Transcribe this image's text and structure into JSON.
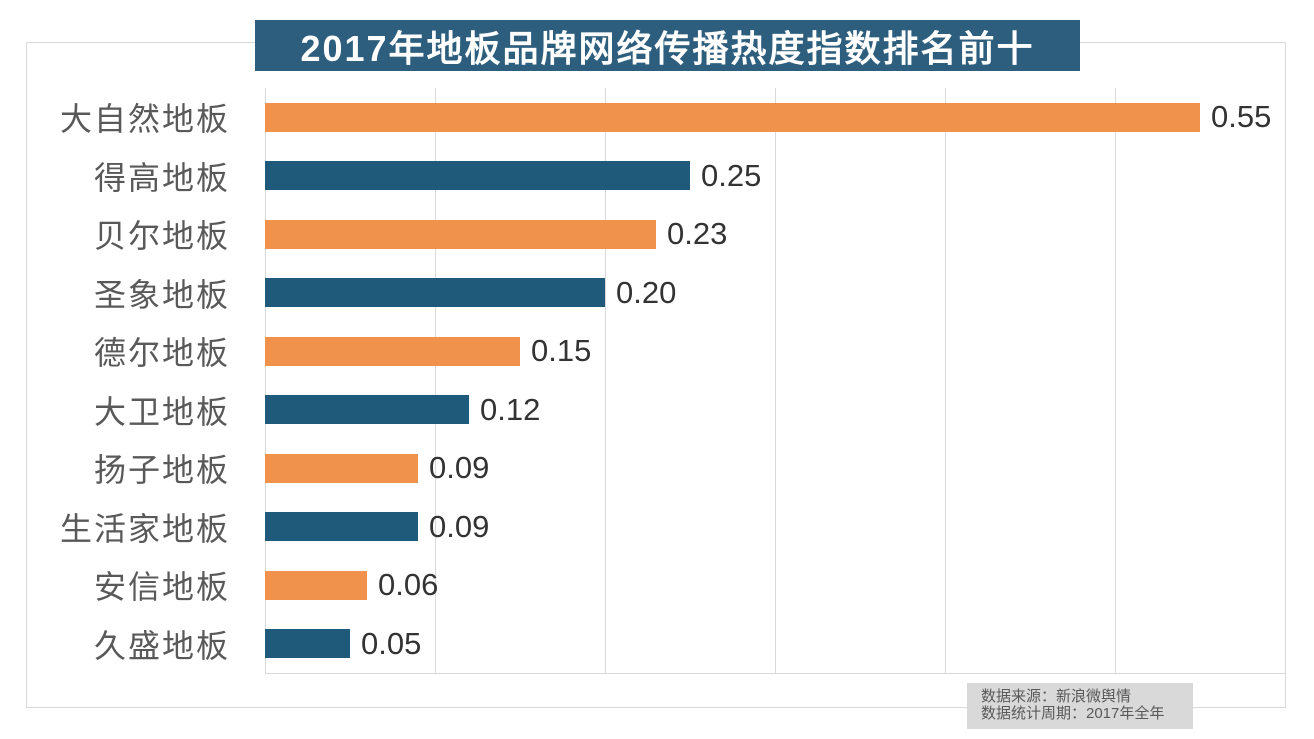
{
  "title": "2017年地板品牌网络传播热度指数排名前十",
  "colors": {
    "title_bg": "#2d5e7e",
    "bar_orange": "#f0924b",
    "bar_teal": "#205a7b",
    "grid": "#d9d9d9",
    "category_text": "#595959",
    "value_text": "#333333",
    "source_bg": "#d9d9d9",
    "source_text": "#595959"
  },
  "source": {
    "line1": "数据来源：新浪微舆情",
    "line2": "数据统计周期：2017年全年"
  },
  "chart_data": {
    "type": "bar",
    "orientation": "horizontal",
    "title": "2017年地板品牌网络传播热度指数排名前十",
    "categories": [
      "大自然地板",
      "得高地板",
      "贝尔地板",
      "圣象地板",
      "德尔地板",
      "大卫地板",
      "扬子地板",
      "生活家地板",
      "安信地板",
      "久盛地板"
    ],
    "values": [
      0.55,
      0.25,
      0.23,
      0.2,
      0.15,
      0.12,
      0.09,
      0.09,
      0.06,
      0.05
    ],
    "value_labels": [
      "0.55",
      "0.25",
      "0.23",
      "0.20",
      "0.15",
      "0.12",
      "0.09",
      "0.09",
      "0.06",
      "0.05"
    ],
    "xlim": [
      0,
      0.6
    ],
    "gridline_interval": 0.1,
    "grid": true,
    "legend": false,
    "bar_color_pattern": [
      "#f0924b",
      "#205a7b"
    ],
    "annotations": [
      "数据来源：新浪微舆情",
      "数据统计周期：2017年全年"
    ]
  }
}
